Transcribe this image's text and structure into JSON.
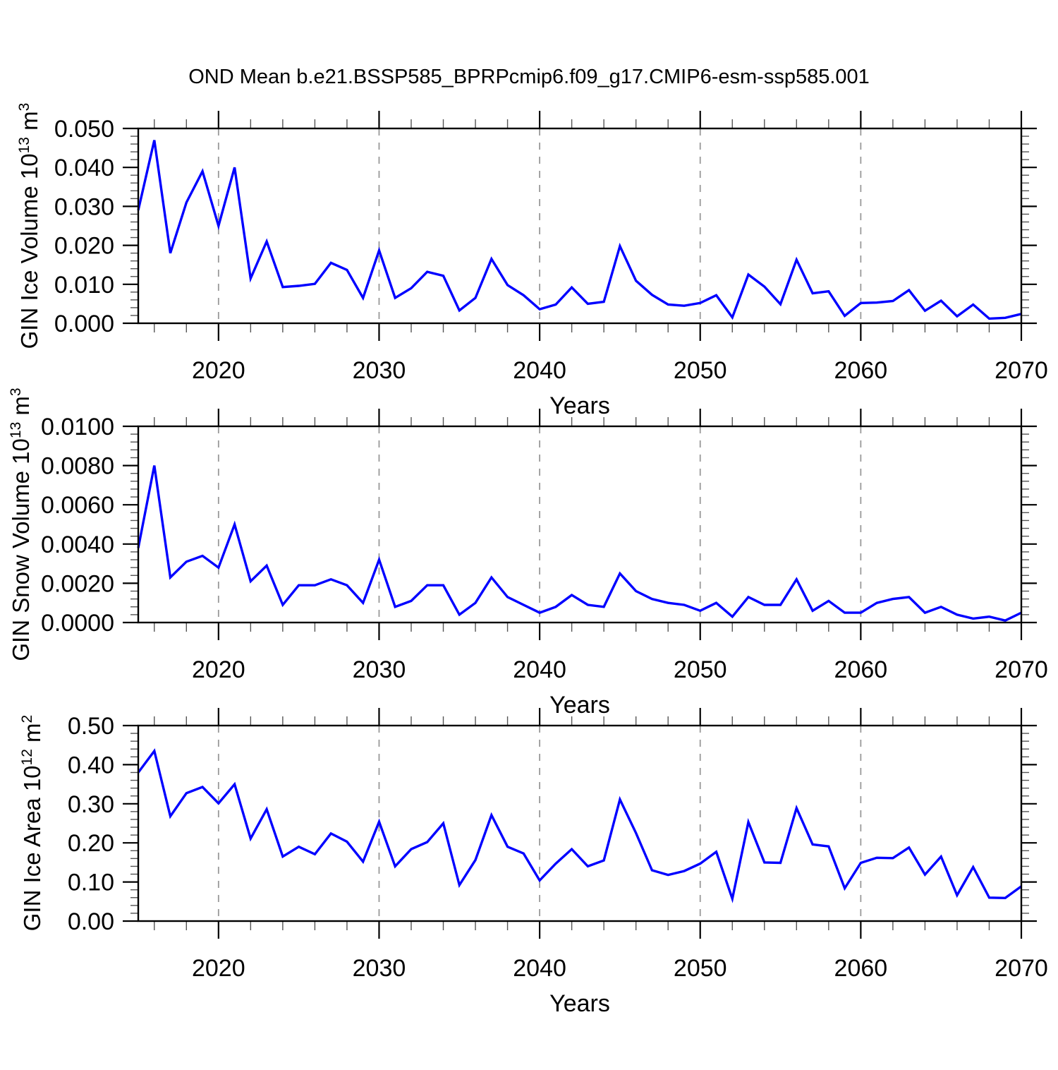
{
  "title": "OND Mean b.e21.BSSP585_BPRPcmip6.f09_g17.CMIP6-esm-ssp585.001",
  "x_axis": {
    "label": "Years",
    "min": 2015,
    "max": 2070,
    "major_ticks": [
      2020,
      2030,
      2040,
      2050,
      2060,
      2070
    ],
    "minor_step_years": 2,
    "gridline_years": [
      2020,
      2030,
      2040,
      2050,
      2060
    ]
  },
  "style": {
    "line_color": "#0000FF",
    "gridline_color": "#999999",
    "axis_color": "#000000",
    "minor_tick_color": "#555555"
  },
  "chart_data": [
    {
      "type": "line",
      "name": "GIN Ice Volume",
      "xlabel": "Years",
      "ylabel": {
        "base": "GIN Ice Volume 10",
        "power": "13",
        "unit_base": " m",
        "unit_power": "3"
      },
      "x_range": [
        2015,
        2070
      ],
      "ylim": [
        0.0,
        0.05
      ],
      "ytick_labels": [
        "0.000",
        "0.010",
        "0.020",
        "0.030",
        "0.040",
        "0.050"
      ],
      "ymajor_step": 0.01,
      "yminor_step": 0.002,
      "grid": "vertical-dashed-decades",
      "legend": "none",
      "x": [
        2015,
        2016,
        2017,
        2018,
        2019,
        2020,
        2021,
        2022,
        2023,
        2024,
        2025,
        2026,
        2027,
        2028,
        2029,
        2030,
        2031,
        2032,
        2033,
        2034,
        2035,
        2036,
        2037,
        2038,
        2039,
        2040,
        2041,
        2042,
        2043,
        2044,
        2045,
        2046,
        2047,
        2048,
        2049,
        2050,
        2051,
        2052,
        2053,
        2054,
        2055,
        2056,
        2057,
        2058,
        2059,
        2060,
        2061,
        2062,
        2063,
        2064,
        2065,
        2066,
        2067,
        2068,
        2069,
        2070
      ],
      "values": [
        0.029,
        0.047,
        0.018,
        0.031,
        0.039,
        0.025,
        0.04,
        0.0115,
        0.021,
        0.0093,
        0.0096,
        0.0101,
        0.0155,
        0.0137,
        0.0065,
        0.0187,
        0.0065,
        0.009,
        0.0132,
        0.0122,
        0.0033,
        0.0065,
        0.0165,
        0.0098,
        0.0072,
        0.0036,
        0.0048,
        0.0092,
        0.005,
        0.0055,
        0.0198,
        0.0109,
        0.0073,
        0.0048,
        0.0045,
        0.0052,
        0.0072,
        0.0015,
        0.0125,
        0.0094,
        0.0049,
        0.0163,
        0.0077,
        0.0082,
        0.0019,
        0.0052,
        0.0053,
        0.0057,
        0.0085,
        0.0032,
        0.0058,
        0.0018,
        0.0048,
        0.0012,
        0.0014,
        0.0024
      ]
    },
    {
      "type": "line",
      "name": "GIN Snow Volume",
      "xlabel": "Years",
      "ylabel": {
        "base": "GIN Snow Volume 10",
        "power": "13",
        "unit_base": " m",
        "unit_power": "3"
      },
      "x_range": [
        2015,
        2070
      ],
      "ylim": [
        0.0,
        0.01
      ],
      "ytick_labels": [
        "0.0000",
        "0.0020",
        "0.0040",
        "0.0060",
        "0.0080",
        "0.0100"
      ],
      "ymajor_step": 0.002,
      "yminor_step": 0.0004,
      "grid": "vertical-dashed-decades",
      "legend": "none",
      "x": [
        2015,
        2016,
        2017,
        2018,
        2019,
        2020,
        2021,
        2022,
        2023,
        2024,
        2025,
        2026,
        2027,
        2028,
        2029,
        2030,
        2031,
        2032,
        2033,
        2034,
        2035,
        2036,
        2037,
        2038,
        2039,
        2040,
        2041,
        2042,
        2043,
        2044,
        2045,
        2046,
        2047,
        2048,
        2049,
        2050,
        2051,
        2052,
        2053,
        2054,
        2055,
        2056,
        2057,
        2058,
        2059,
        2060,
        2061,
        2062,
        2063,
        2064,
        2065,
        2066,
        2067,
        2068,
        2069,
        2070
      ],
      "values": [
        0.0038,
        0.008,
        0.0023,
        0.0031,
        0.0034,
        0.0028,
        0.005,
        0.0021,
        0.0029,
        0.0009,
        0.0019,
        0.0019,
        0.0022,
        0.0019,
        0.001,
        0.0032,
        0.0008,
        0.0011,
        0.0019,
        0.0019,
        0.0004,
        0.001,
        0.0023,
        0.0013,
        0.0009,
        0.0005,
        0.0008,
        0.0014,
        0.0009,
        0.0008,
        0.0025,
        0.0016,
        0.0012,
        0.001,
        0.0009,
        0.0006,
        0.001,
        0.0003,
        0.0013,
        0.0009,
        0.0009,
        0.0022,
        0.0006,
        0.0011,
        0.0005,
        0.0005,
        0.001,
        0.0012,
        0.0013,
        0.0005,
        0.0008,
        0.0004,
        0.0002,
        0.0003,
        0.0001,
        0.0005
      ]
    },
    {
      "type": "line",
      "name": "GIN Ice Area",
      "xlabel": "Years",
      "ylabel": {
        "base": "GIN Ice Area 10",
        "power": "12",
        "unit_base": " m",
        "unit_power": "2"
      },
      "x_range": [
        2015,
        2070
      ],
      "ylim": [
        0.0,
        0.5
      ],
      "ytick_labels": [
        "0.00",
        "0.10",
        "0.20",
        "0.30",
        "0.40",
        "0.50"
      ],
      "ymajor_step": 0.1,
      "yminor_step": 0.02,
      "grid": "vertical-dashed-decades",
      "legend": "none",
      "x": [
        2015,
        2016,
        2017,
        2018,
        2019,
        2020,
        2021,
        2022,
        2023,
        2024,
        2025,
        2026,
        2027,
        2028,
        2029,
        2030,
        2031,
        2032,
        2033,
        2034,
        2035,
        2036,
        2037,
        2038,
        2039,
        2040,
        2041,
        2042,
        2043,
        2044,
        2045,
        2046,
        2047,
        2048,
        2049,
        2050,
        2051,
        2052,
        2053,
        2054,
        2055,
        2056,
        2057,
        2058,
        2059,
        2060,
        2061,
        2062,
        2063,
        2064,
        2065,
        2066,
        2067,
        2068,
        2069,
        2070
      ],
      "values": [
        0.38,
        0.435,
        0.268,
        0.327,
        0.343,
        0.301,
        0.35,
        0.211,
        0.286,
        0.165,
        0.19,
        0.171,
        0.224,
        0.203,
        0.152,
        0.254,
        0.14,
        0.184,
        0.202,
        0.25,
        0.092,
        0.156,
        0.271,
        0.19,
        0.173,
        0.104,
        0.147,
        0.184,
        0.14,
        0.155,
        0.311,
        0.225,
        0.13,
        0.118,
        0.128,
        0.147,
        0.177,
        0.057,
        0.253,
        0.15,
        0.149,
        0.289,
        0.196,
        0.191,
        0.084,
        0.149,
        0.162,
        0.161,
        0.188,
        0.119,
        0.165,
        0.066,
        0.138,
        0.06,
        0.059,
        0.089
      ]
    }
  ]
}
